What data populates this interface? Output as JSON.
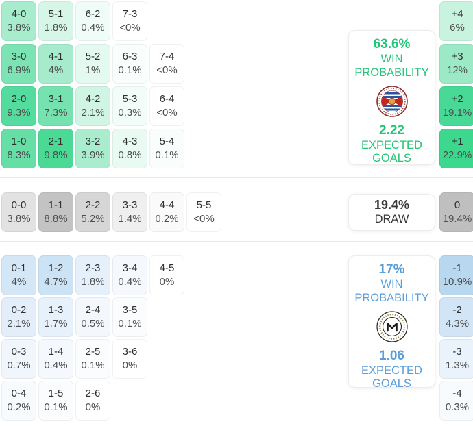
{
  "labels": {
    "win": "WIN",
    "probability": "PROBABILITY",
    "expected": "EXPECTED",
    "goals": "GOALS",
    "draw": "DRAW"
  },
  "colors": {
    "home_accent": "#23c577",
    "away_accent": "#5b9ed8",
    "draw_text": "#383838",
    "divider": "#e7e7e7"
  },
  "chart_data": {
    "type": "heatmap",
    "title": "",
    "home": {
      "win_probability": "63.6%",
      "expected_goals": "2.22",
      "rows": [
        [
          {
            "score": "4-0",
            "probability": "3.8%",
            "color": "#a8ecce"
          },
          {
            "score": "5-1",
            "probability": "1.8%",
            "color": "#d6f6e8"
          },
          {
            "score": "6-2",
            "probability": "0.4%",
            "color": "#f0fcf7"
          },
          {
            "score": "7-3",
            "probability": "<0%",
            "color": "#ffffff"
          }
        ],
        [
          {
            "score": "3-0",
            "probability": "6.9%",
            "color": "#7ce3b4"
          },
          {
            "score": "4-1",
            "probability": "4%",
            "color": "#a6ebcb"
          },
          {
            "score": "5-2",
            "probability": "1%",
            "color": "#e4f9ef"
          },
          {
            "score": "6-3",
            "probability": "0.1%",
            "color": "#f9fdfb"
          },
          {
            "score": "7-4",
            "probability": "<0%",
            "color": "#ffffff"
          }
        ],
        [
          {
            "score": "2-0",
            "probability": "9.3%",
            "color": "#54dc9e"
          },
          {
            "score": "3-1",
            "probability": "7.3%",
            "color": "#75e2af"
          },
          {
            "score": "4-2",
            "probability": "2.1%",
            "color": "#d1f5e4"
          },
          {
            "score": "5-3",
            "probability": "0.3%",
            "color": "#f2fcf8"
          },
          {
            "score": "6-4",
            "probability": "<0%",
            "color": "#ffffff"
          }
        ],
        [
          {
            "score": "1-0",
            "probability": "8.3%",
            "color": "#66dfa6"
          },
          {
            "score": "2-1",
            "probability": "9.8%",
            "color": "#4ada96"
          },
          {
            "score": "3-2",
            "probability": "3.9%",
            "color": "#a9ecce"
          },
          {
            "score": "4-3",
            "probability": "0.8%",
            "color": "#e8faf2"
          },
          {
            "score": "5-4",
            "probability": "0.1%",
            "color": "#f9fdfb"
          }
        ]
      ],
      "goal_difference": [
        {
          "diff": "+4",
          "probability": "6%",
          "color": "#c8f3df"
        },
        {
          "diff": "+3",
          "probability": "12%",
          "color": "#9ce9c6"
        },
        {
          "diff": "+2",
          "probability": "19.1%",
          "color": "#48d996"
        },
        {
          "diff": "+1",
          "probability": "22.9%",
          "color": "#3bd88d"
        }
      ]
    },
    "draw": {
      "probability": "19.4%",
      "rows": [
        [
          {
            "score": "0-0",
            "probability": "3.8%",
            "color": "#e2e2e2"
          },
          {
            "score": "1-1",
            "probability": "8.8%",
            "color": "#c3c3c3"
          },
          {
            "score": "2-2",
            "probability": "5.2%",
            "color": "#d6d6d6"
          },
          {
            "score": "3-3",
            "probability": "1.4%",
            "color": "#efefef"
          },
          {
            "score": "4-4",
            "probability": "0.2%",
            "color": "#fafafa"
          },
          {
            "score": "5-5",
            "probability": "<0%",
            "color": "#ffffff"
          }
        ]
      ],
      "goal_difference": [
        {
          "diff": "0",
          "probability": "19.4%",
          "color": "#bfbfbf"
        }
      ]
    },
    "away": {
      "win_probability": "17%",
      "expected_goals": "1.06",
      "rows": [
        [
          {
            "score": "0-1",
            "probability": "4%",
            "color": "#d4e7f7"
          },
          {
            "score": "1-2",
            "probability": "4.7%",
            "color": "#cce3f5"
          },
          {
            "score": "2-3",
            "probability": "1.8%",
            "color": "#e6f0fa"
          },
          {
            "score": "3-4",
            "probability": "0.4%",
            "color": "#f5f9fd"
          },
          {
            "score": "4-5",
            "probability": "0%",
            "color": "#ffffff"
          }
        ],
        [
          {
            "score": "0-2",
            "probability": "2.1%",
            "color": "#e3eefa"
          },
          {
            "score": "1-3",
            "probability": "1.7%",
            "color": "#e7f1fb"
          },
          {
            "score": "2-4",
            "probability": "0.5%",
            "color": "#f4f8fd"
          },
          {
            "score": "3-5",
            "probability": "0.1%",
            "color": "#fafcfe"
          }
        ],
        [
          {
            "score": "0-3",
            "probability": "0.7%",
            "color": "#f0f6fc"
          },
          {
            "score": "1-4",
            "probability": "0.4%",
            "color": "#f5f9fd"
          },
          {
            "score": "2-5",
            "probability": "0.1%",
            "color": "#fafcfe"
          },
          {
            "score": "3-6",
            "probability": "0%",
            "color": "#ffffff"
          }
        ],
        [
          {
            "score": "0-4",
            "probability": "0.2%",
            "color": "#f8fbfd"
          },
          {
            "score": "1-5",
            "probability": "0.1%",
            "color": "#fafcfe"
          },
          {
            "score": "2-6",
            "probability": "0%",
            "color": "#ffffff"
          }
        ]
      ],
      "goal_difference": [
        {
          "diff": "-1",
          "probability": "10.9%",
          "color": "#b8d8ef"
        },
        {
          "diff": "-2",
          "probability": "4.3%",
          "color": "#d2e5f6"
        },
        {
          "diff": "-3",
          "probability": "1.3%",
          "color": "#eaf3fb"
        },
        {
          "diff": "-4",
          "probability": "0.3%",
          "color": "#f8fbfd"
        }
      ]
    }
  }
}
